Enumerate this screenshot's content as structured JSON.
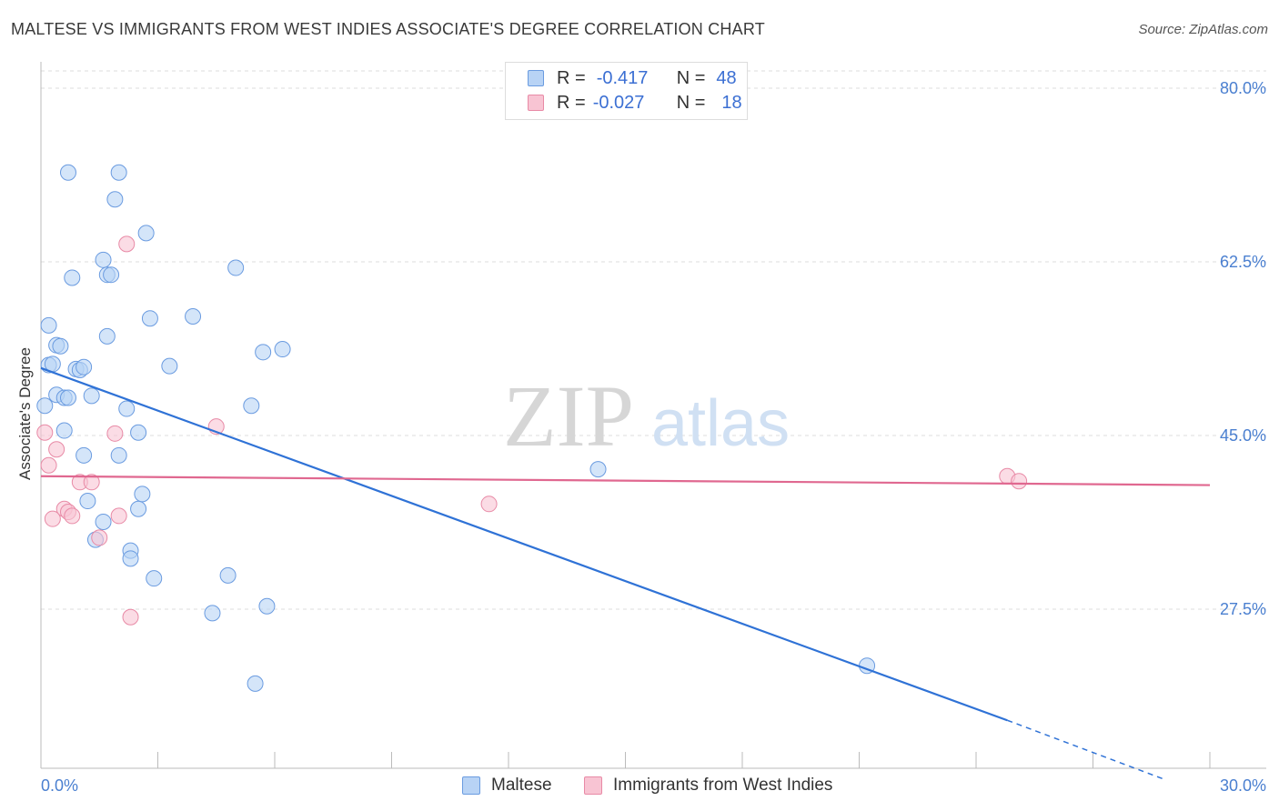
{
  "title": "MALTESE VS IMMIGRANTS FROM WEST INDIES ASSOCIATE'S DEGREE CORRELATION CHART",
  "source": "Source: ZipAtlas.com",
  "watermark": {
    "zip": "ZIP",
    "atlas": "atlas"
  },
  "colors": {
    "maltese_fill": "#b8d3f5",
    "maltese_stroke": "#6a9be0",
    "maltese_line": "#2f72d6",
    "wi_fill": "#f8c4d3",
    "wi_stroke": "#e88aa6",
    "wi_line": "#e06890",
    "tick_text": "#4a7fd0",
    "grid": "#dddddd"
  },
  "legend": {
    "rows": [
      {
        "r_label": "R =",
        "r_value": "-0.417",
        "n_label": "N =",
        "n_value": "48"
      },
      {
        "r_label": "R =",
        "r_value": "-0.027",
        "n_label": "N =",
        "n_value": "18"
      }
    ]
  },
  "bottom_legend": {
    "maltese": "Maltese",
    "west_indies": "Immigrants from West Indies"
  },
  "chart_data": {
    "type": "scatter",
    "title": "MALTESE VS IMMIGRANTS FROM WEST INDIES ASSOCIATE'S DEGREE CORRELATION CHART",
    "xlabel": "",
    "ylabel": "Associate's Degree",
    "xlim": [
      0,
      30
    ],
    "ylim": [
      10,
      82
    ],
    "x_tick_labels": [
      "0.0%",
      "30.0%"
    ],
    "y_ticks": [
      27.5,
      45.0,
      62.5,
      80.0
    ],
    "y_tick_labels": [
      "27.5%",
      "45.0%",
      "62.5%",
      "80.0%"
    ],
    "series": [
      {
        "name": "Maltese",
        "r": -0.417,
        "n": 48,
        "points": [
          [
            0.1,
            48.0
          ],
          [
            0.2,
            52.1
          ],
          [
            0.2,
            56.1
          ],
          [
            0.3,
            52.2
          ],
          [
            0.4,
            54.1
          ],
          [
            0.4,
            49.1
          ],
          [
            0.5,
            54.0
          ],
          [
            0.6,
            45.5
          ],
          [
            0.6,
            48.8
          ],
          [
            0.7,
            48.8
          ],
          [
            0.7,
            71.5
          ],
          [
            0.8,
            60.9
          ],
          [
            0.9,
            51.7
          ],
          [
            1.0,
            51.6
          ],
          [
            1.1,
            51.9
          ],
          [
            1.1,
            43.0
          ],
          [
            1.2,
            38.4
          ],
          [
            1.3,
            49.0
          ],
          [
            1.4,
            34.5
          ],
          [
            1.6,
            36.3
          ],
          [
            1.6,
            62.7
          ],
          [
            1.7,
            55.0
          ],
          [
            1.7,
            61.2
          ],
          [
            1.8,
            61.2
          ],
          [
            1.9,
            68.8
          ],
          [
            2.0,
            43.0
          ],
          [
            2.0,
            71.5
          ],
          [
            2.2,
            47.7
          ],
          [
            2.3,
            33.4
          ],
          [
            2.3,
            32.6
          ],
          [
            2.5,
            37.6
          ],
          [
            2.5,
            45.3
          ],
          [
            2.6,
            39.1
          ],
          [
            2.7,
            65.4
          ],
          [
            2.8,
            56.8
          ],
          [
            2.9,
            30.6
          ],
          [
            3.3,
            52.0
          ],
          [
            3.9,
            57.0
          ],
          [
            4.4,
            27.1
          ],
          [
            4.8,
            30.9
          ],
          [
            5.0,
            61.9
          ],
          [
            5.4,
            48.0
          ],
          [
            5.5,
            20.0
          ],
          [
            5.7,
            53.4
          ],
          [
            5.8,
            27.8
          ],
          [
            6.2,
            53.7
          ],
          [
            14.3,
            41.6
          ],
          [
            21.2,
            21.8
          ]
        ],
        "trend": {
          "x_start": 0.0,
          "y_start": 51.8,
          "x_end": 24.8,
          "y_end": 16.3,
          "dashed_to_x": 28.8,
          "dashed_to_y": 10.4
        }
      },
      {
        "name": "Immigrants from West Indies",
        "r": -0.027,
        "n": 18,
        "points": [
          [
            0.1,
            45.3
          ],
          [
            0.2,
            42.0
          ],
          [
            0.3,
            36.6
          ],
          [
            0.4,
            43.6
          ],
          [
            0.6,
            37.6
          ],
          [
            0.7,
            37.3
          ],
          [
            0.8,
            36.9
          ],
          [
            1.0,
            40.3
          ],
          [
            1.3,
            40.3
          ],
          [
            1.5,
            34.7
          ],
          [
            1.9,
            45.2
          ],
          [
            2.0,
            36.9
          ],
          [
            2.2,
            64.3
          ],
          [
            2.3,
            26.7
          ],
          [
            4.5,
            45.9
          ],
          [
            11.5,
            38.1
          ],
          [
            24.8,
            40.9
          ],
          [
            25.1,
            40.4
          ]
        ],
        "trend": {
          "x_start": 0.0,
          "y_start": 40.9,
          "x_end": 30.0,
          "y_end": 40.0
        }
      }
    ]
  }
}
